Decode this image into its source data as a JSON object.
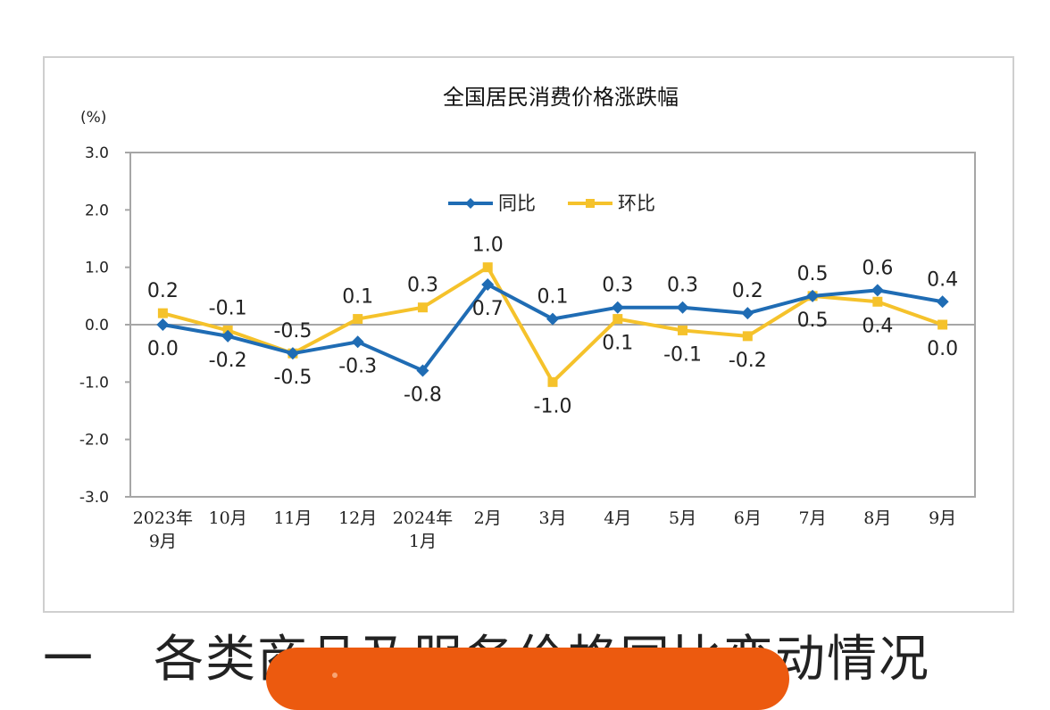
{
  "chart_data": {
    "type": "line",
    "title": "全国居民消费价格涨跌幅",
    "unit_label": "(%)",
    "ylim": [
      -3.0,
      3.0
    ],
    "y_ticks": [
      "3.0",
      "2.0",
      "1.0",
      "0.0",
      "-1.0",
      "-2.0",
      "-3.0"
    ],
    "categories": [
      [
        "2023年",
        "9月"
      ],
      [
        "10月"
      ],
      [
        "11月"
      ],
      [
        "12月"
      ],
      [
        "2024年",
        "1月"
      ],
      [
        "2月"
      ],
      [
        "3月"
      ],
      [
        "4月"
      ],
      [
        "5月"
      ],
      [
        "6月"
      ],
      [
        "7月"
      ],
      [
        "8月"
      ],
      [
        "9月"
      ]
    ],
    "series": [
      {
        "name": "同比",
        "color": "#1f6cb4",
        "marker": "diamond",
        "values": [
          0.0,
          -0.2,
          -0.5,
          -0.3,
          -0.8,
          0.7,
          0.1,
          0.3,
          0.3,
          0.2,
          0.5,
          0.6,
          0.4
        ],
        "labels": [
          "0.0",
          "-0.2",
          "-0.5",
          "-0.3",
          "-0.8",
          "0.7",
          "0.1",
          "0.3",
          "0.3",
          "0.2",
          "0.5",
          "0.6",
          "0.4"
        ]
      },
      {
        "name": "环比",
        "color": "#f5c22b",
        "marker": "square",
        "values": [
          0.2,
          -0.1,
          -0.5,
          0.1,
          0.3,
          1.0,
          -1.0,
          0.1,
          -0.1,
          -0.2,
          0.5,
          0.4,
          0.0
        ],
        "labels": [
          "0.2",
          "-0.1",
          "-0.5",
          "0.1",
          "0.3",
          "1.0",
          "-1.0",
          "0.1",
          "-0.1",
          "-0.2",
          "0.5",
          "0.4",
          "0.0"
        ]
      }
    ],
    "legend": "top-center",
    "grid": false
  },
  "article": {
    "section_number": "一",
    "section_heading": "各类商品及服务价格同比变动情况"
  },
  "colors": {
    "promo_pill": "#ec5a0f",
    "frame_border": "#cfcfcf",
    "plot_border": "#a6a6a6"
  }
}
